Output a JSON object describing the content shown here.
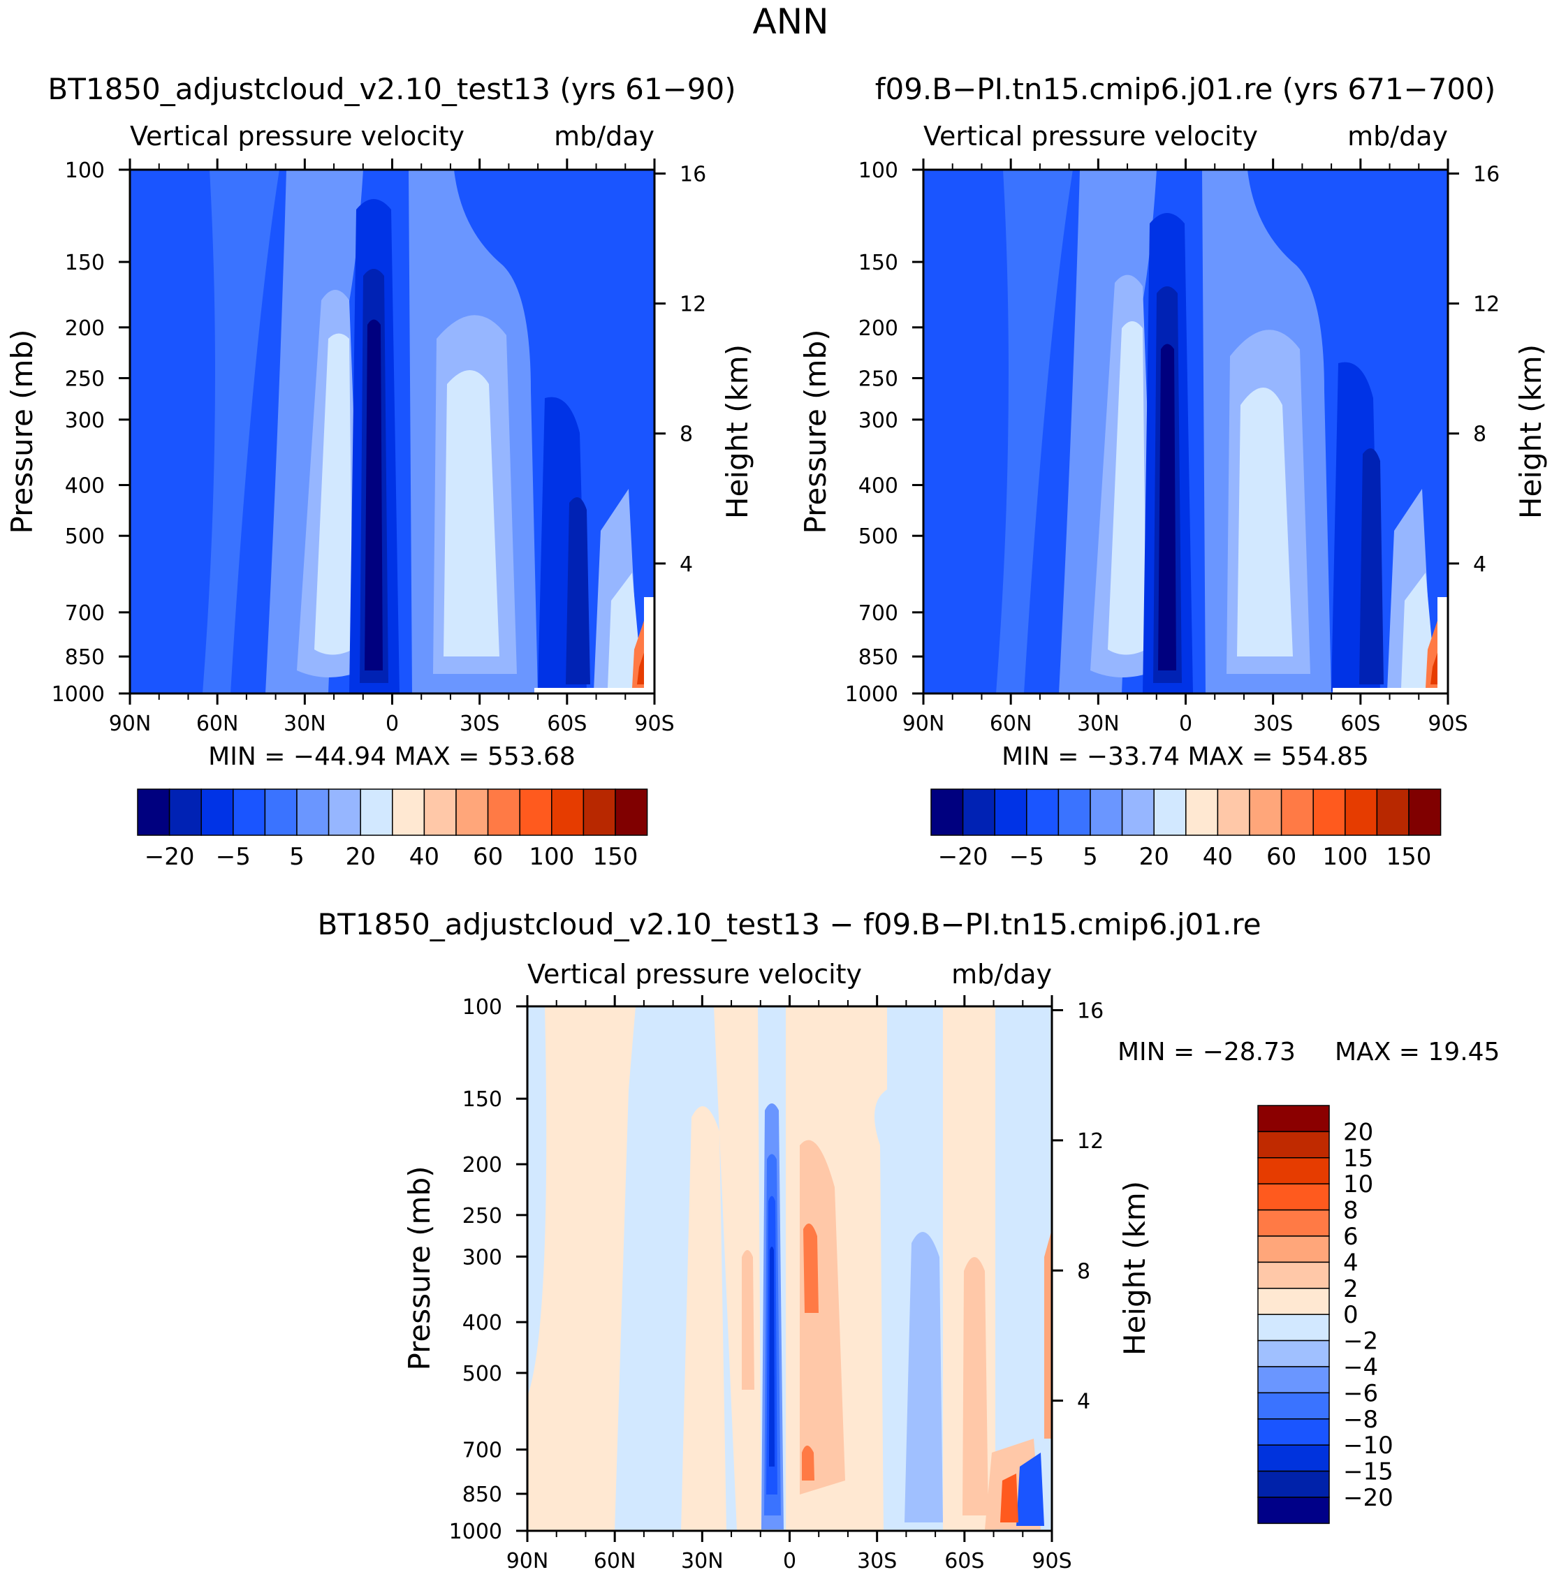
{
  "figure": {
    "title": "ANN"
  },
  "colors": {
    "blue": [
      "#00007f",
      "#0022b4",
      "#0033e6",
      "#1a55ff",
      "#3a73ff",
      "#6a96ff",
      "#96b6ff",
      "#d2e8ff"
    ],
    "red": [
      "#ffe8d2",
      "#ffc8a8",
      "#ffa67a",
      "#ff7a45",
      "#ff5a1e",
      "#e63c00",
      "#b82800",
      "#800000"
    ],
    "diff": [
      "#000088",
      "#0022aa",
      "#0033dd",
      "#1a55ff",
      "#3a73ff",
      "#6a96ff",
      "#a0c0ff",
      "#d2e8ff",
      "#ffe8d2",
      "#ffc8a8",
      "#ffa67a",
      "#ff7a45",
      "#ff5a1e",
      "#e63c00",
      "#c02a00",
      "#8b0000"
    ]
  },
  "chart_data": [
    {
      "type": "heatmap",
      "case_title": "BT1850_adjustcloud_v2.10_test13 (yrs 61−90)",
      "var_left": "Vertical pressure velocity",
      "var_right": "mb/day",
      "xlabel": "",
      "ylabel": "Pressure (mb)",
      "y2label": "Height (km)",
      "x_ticks": [
        "90N",
        "60N",
        "30N",
        "0",
        "30S",
        "60S",
        "90S"
      ],
      "y_ticks": [
        100,
        150,
        200,
        250,
        300,
        400,
        500,
        700,
        850,
        1000
      ],
      "y2_ticks": [
        16,
        12,
        8,
        4
      ],
      "ylim": [
        1000,
        100
      ],
      "stats": "MIN = −44.94   MAX = 553.68",
      "colorbar_labels": [
        "−20",
        "−5",
        "5",
        "20",
        "40",
        "60",
        "100",
        "150"
      ]
    },
    {
      "type": "heatmap",
      "case_title": "f09.B−PI.tn15.cmip6.j01.re (yrs 671−700)",
      "var_left": "Vertical pressure velocity",
      "var_right": "mb/day",
      "xlabel": "",
      "ylabel": "Pressure (mb)",
      "y2label": "Height (km)",
      "x_ticks": [
        "90N",
        "60N",
        "30N",
        "0",
        "30S",
        "60S",
        "90S"
      ],
      "y_ticks": [
        100,
        150,
        200,
        250,
        300,
        400,
        500,
        700,
        850,
        1000
      ],
      "y2_ticks": [
        16,
        12,
        8,
        4
      ],
      "ylim": [
        1000,
        100
      ],
      "stats": "MIN = −33.74   MAX = 554.85",
      "colorbar_labels": [
        "−20",
        "−5",
        "5",
        "20",
        "40",
        "60",
        "100",
        "150"
      ]
    },
    {
      "type": "heatmap",
      "case_title": "BT1850_adjustcloud_v2.10_test13 − f09.B−PI.tn15.cmip6.j01.re",
      "var_left": "Vertical pressure velocity",
      "var_right": "mb/day",
      "xlabel": "",
      "ylabel": "Pressure (mb)",
      "y2label": "Height (km)",
      "x_ticks": [
        "90N",
        "60N",
        "30N",
        "0",
        "30S",
        "60S",
        "90S"
      ],
      "y_ticks": [
        100,
        150,
        200,
        250,
        300,
        400,
        500,
        700,
        850,
        1000
      ],
      "y2_ticks": [
        16,
        12,
        8,
        4
      ],
      "ylim": [
        1000,
        100
      ],
      "stats_min": "MIN = −28.73",
      "stats_max": "MAX =   19.45",
      "colorbar_labels": [
        "20",
        "15",
        "10",
        "8",
        "6",
        "4",
        "2",
        "0",
        "−2",
        "−4",
        "−6",
        "−8",
        "−10",
        "−15",
        "−20"
      ]
    }
  ]
}
